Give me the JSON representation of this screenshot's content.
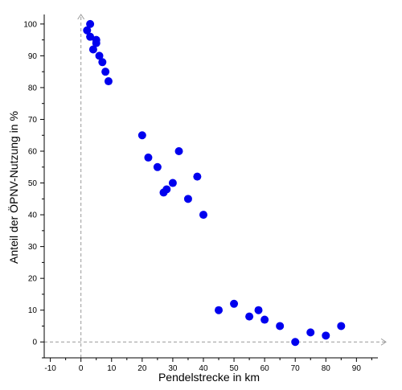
{
  "chart_data": {
    "type": "scatter",
    "title": "",
    "xlabel": "Pendelstrecke in km",
    "ylabel": "Anteil der ÖPNV-Nutzung in %",
    "xlim": [
      -12,
      97
    ],
    "ylim": [
      -5,
      103
    ],
    "xticks": [
      -10,
      0,
      10,
      20,
      30,
      40,
      50,
      60,
      70,
      80,
      90
    ],
    "yticks": [
      0,
      10,
      20,
      30,
      40,
      50,
      60,
      70,
      80,
      90,
      100
    ],
    "zero_lines": "dashed",
    "grid": false,
    "marker_color": "#0000ee",
    "series": [
      {
        "points": [
          [
            2,
            98
          ],
          [
            3,
            100
          ],
          [
            3,
            96
          ],
          [
            4,
            92
          ],
          [
            5,
            95
          ],
          [
            5,
            94
          ],
          [
            6,
            90
          ],
          [
            7,
            88
          ],
          [
            8,
            85
          ],
          [
            9,
            82
          ],
          [
            20,
            65
          ],
          [
            22,
            58
          ],
          [
            25,
            55
          ],
          [
            27,
            47
          ],
          [
            28,
            48
          ],
          [
            30,
            50
          ],
          [
            32,
            60
          ],
          [
            35,
            45
          ],
          [
            38,
            52
          ],
          [
            40,
            40
          ],
          [
            45,
            10
          ],
          [
            50,
            12
          ],
          [
            55,
            8
          ],
          [
            58,
            10
          ],
          [
            60,
            7
          ],
          [
            65,
            5
          ],
          [
            70,
            0
          ],
          [
            75,
            3
          ],
          [
            80,
            2
          ],
          [
            85,
            5
          ]
        ]
      }
    ]
  }
}
